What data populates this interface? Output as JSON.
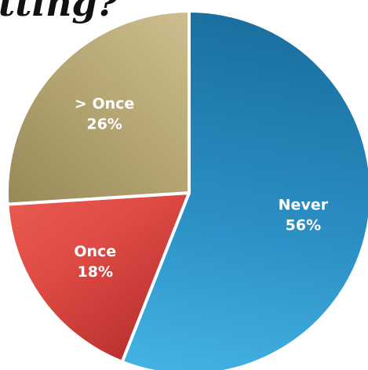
{
  "title_fragment": "tting?",
  "colors": {
    "background": "#ffffff",
    "label_text": "#ffffff",
    "separator": "#ffffff"
  },
  "chart_data": {
    "type": "pie",
    "title": "",
    "start_angle_deg": 0,
    "direction": "clockwise",
    "slices": [
      {
        "label": "Never",
        "value": 56,
        "value_label": "56%",
        "color": "#2b8fc4",
        "color_light": "#43b3e3",
        "color_dark": "#1a6fa0"
      },
      {
        "label": "Once",
        "value": 18,
        "value_label": "18%",
        "color": "#e04b45",
        "color_light": "#f06a5c",
        "color_dark": "#a01e20"
      },
      {
        "label": "> Once",
        "value": 26,
        "value_label": "26%",
        "color": "#b7a876",
        "color_light": "#d6c89a",
        "color_dark": "#8d7f4e"
      }
    ]
  }
}
